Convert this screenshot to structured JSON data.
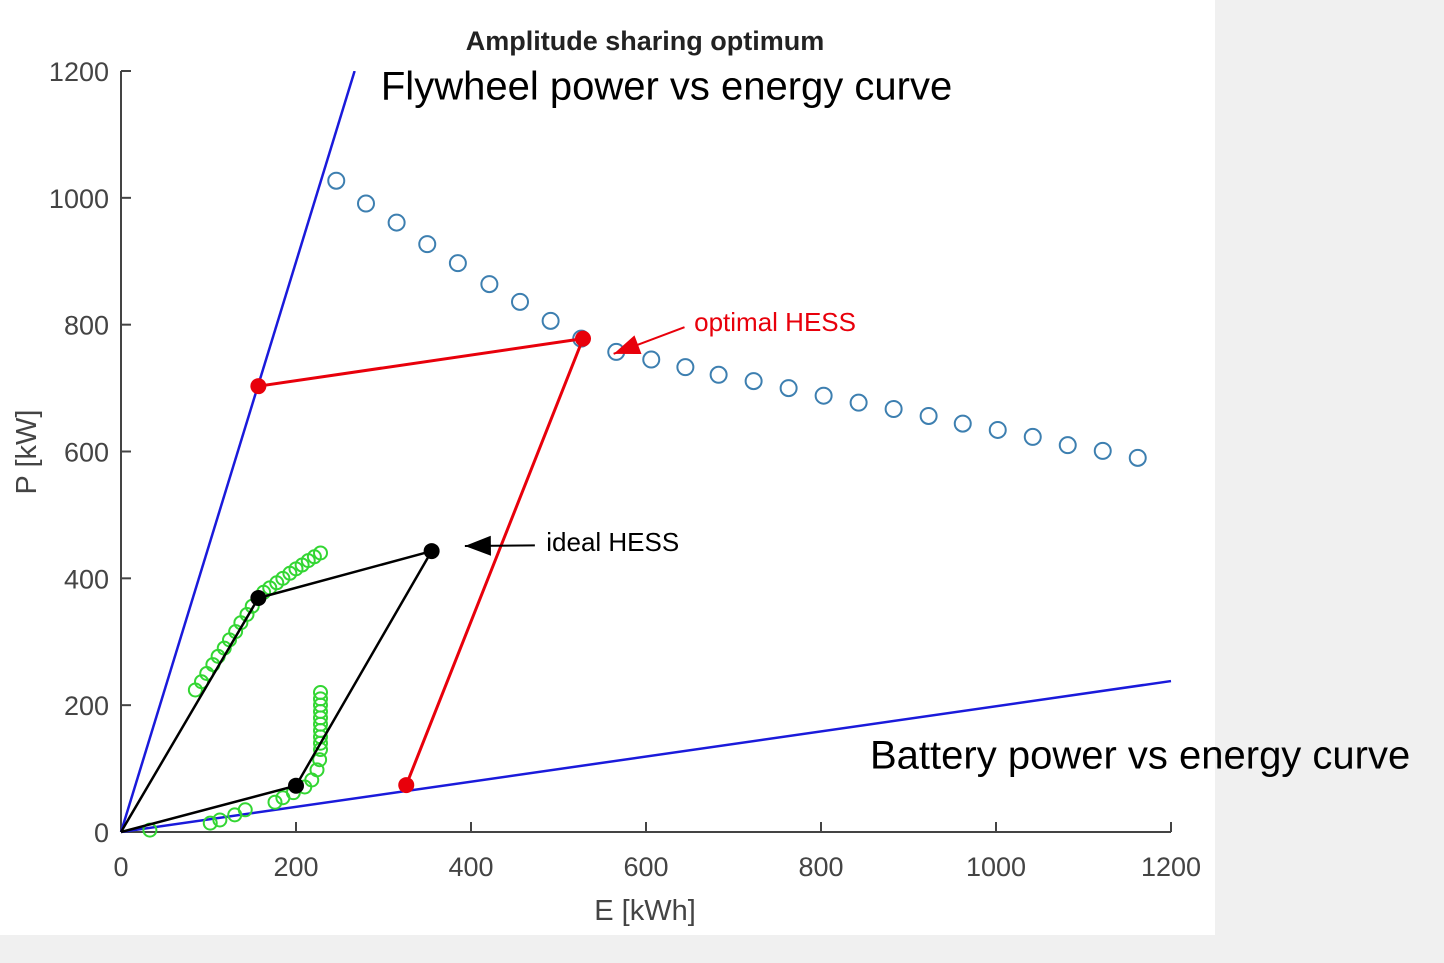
{
  "chart_data": {
    "type": "scatter",
    "title": "Amplitude sharing optimum",
    "xlabel": "E [kWh]",
    "ylabel": "P [kW]",
    "xlim": [
      0,
      1200
    ],
    "ylim": [
      0,
      1200
    ],
    "xticks": [
      0,
      200,
      400,
      600,
      800,
      1000,
      1200
    ],
    "yticks": [
      0,
      200,
      400,
      600,
      800,
      1000,
      1200
    ],
    "grid": false,
    "lines": [
      {
        "name": "Flywheel power vs energy curve",
        "color": "#1a1adb",
        "points": [
          [
            0,
            0
          ],
          [
            267,
            1200
          ]
        ]
      },
      {
        "name": "Battery power vs energy curve",
        "color": "#1a1adb",
        "points": [
          [
            0,
            0
          ],
          [
            1200,
            238
          ]
        ]
      }
    ],
    "series": [
      {
        "name": "blue-circles",
        "marker": "circle",
        "color": "#3d7fb0",
        "points": [
          [
            246,
            1027
          ],
          [
            280,
            991
          ],
          [
            315,
            961
          ],
          [
            350,
            927
          ],
          [
            385,
            897
          ],
          [
            421,
            864
          ],
          [
            456,
            836
          ],
          [
            491,
            806
          ],
          [
            526,
            778
          ],
          [
            566,
            757
          ],
          [
            606,
            745
          ],
          [
            645,
            733
          ],
          [
            683,
            721
          ],
          [
            723,
            711
          ],
          [
            763,
            700
          ],
          [
            803,
            688
          ],
          [
            843,
            677
          ],
          [
            883,
            667
          ],
          [
            923,
            656
          ],
          [
            962,
            644
          ],
          [
            1002,
            634
          ],
          [
            1042,
            623
          ],
          [
            1082,
            610
          ],
          [
            1122,
            601
          ],
          [
            1162,
            590
          ]
        ]
      },
      {
        "name": "green-circles",
        "marker": "circle",
        "color": "#33d633",
        "points": [
          [
            85,
            224
          ],
          [
            92,
            237
          ],
          [
            98,
            250
          ],
          [
            105,
            264
          ],
          [
            111,
            277
          ],
          [
            118,
            290
          ],
          [
            124,
            303
          ],
          [
            131,
            316
          ],
          [
            137,
            330
          ],
          [
            144,
            343
          ],
          [
            150,
            356
          ],
          [
            157,
            369
          ],
          [
            163,
            378
          ],
          [
            170,
            385
          ],
          [
            178,
            393
          ],
          [
            185,
            400
          ],
          [
            193,
            408
          ],
          [
            200,
            415
          ],
          [
            207,
            421
          ],
          [
            214,
            428
          ],
          [
            221,
            434
          ],
          [
            228,
            440
          ],
          [
            33,
            3
          ],
          [
            102,
            14
          ],
          [
            113,
            19
          ],
          [
            130,
            27
          ],
          [
            142,
            35
          ],
          [
            176,
            47
          ],
          [
            185,
            54
          ],
          [
            197,
            62
          ],
          [
            210,
            71
          ],
          [
            218,
            82
          ],
          [
            224,
            98
          ],
          [
            227,
            114
          ],
          [
            228,
            130
          ],
          [
            228,
            140
          ],
          [
            228,
            150
          ],
          [
            228,
            160
          ],
          [
            228,
            170
          ],
          [
            228,
            180
          ],
          [
            228,
            190
          ],
          [
            228,
            200
          ],
          [
            228,
            210
          ],
          [
            228,
            220
          ]
        ]
      }
    ],
    "paths": [
      {
        "name": "optimal HESS",
        "color": "#e8000b",
        "points": [
          [
            157,
            703
          ],
          [
            528,
            778
          ],
          [
            326,
            74
          ]
        ]
      },
      {
        "name": "ideal HESS",
        "color": "#000000",
        "points": [
          [
            0,
            0
          ],
          [
            157,
            369
          ],
          [
            355,
            443
          ],
          [
            200,
            73
          ],
          [
            0,
            0
          ]
        ],
        "dots": [
          [
            157,
            369
          ],
          [
            355,
            443
          ],
          [
            200,
            73
          ]
        ]
      }
    ],
    "annotations": [
      {
        "text": "optimal HESS",
        "color": "#e8000b",
        "text_at": [
          655,
          790
        ],
        "arrow_from": [
          644,
          796
        ],
        "arrow_to": [
          563,
          754
        ]
      },
      {
        "text": "ideal HESS",
        "color": "#000000",
        "text_at": [
          486,
          443
        ],
        "arrow_from": [
          473,
          452
        ],
        "arrow_to": [
          393,
          451
        ]
      },
      {
        "text": "Flywheel power vs energy curve",
        "color": "#000000",
        "text_at": [
          297,
          1155
        ]
      },
      {
        "text": "Battery power vs energy curve",
        "color": "#000000",
        "text_at": [
          856,
          100
        ]
      }
    ]
  }
}
